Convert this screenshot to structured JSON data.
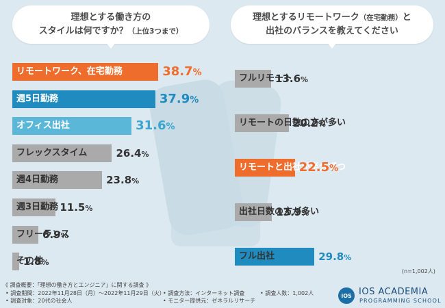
{
  "chart_data": [
    {
      "type": "bar",
      "title_line1": "理想とする働き方の",
      "title_line2": "スタイルは何ですか？",
      "title_note": "（上位3つまで）",
      "categories": [
        "リモートワーク、在宅勤務",
        "週5日勤務",
        "オフィス出社",
        "フレックスタイム",
        "週4日勤務",
        "週3日勤務",
        "フリーランス",
        "その他"
      ],
      "values": [
        38.7,
        37.9,
        31.6,
        26.4,
        23.8,
        11.5,
        6.9,
        1.8
      ],
      "unit": "%",
      "colors": [
        "#ee6d2c",
        "#1f8bbf",
        "#5bb7d8",
        "#aaaaaa",
        "#aaaaaa",
        "#aaaaaa",
        "#aaaaaa",
        "#aaaaaa"
      ],
      "value_colors": [
        "#ee6d2c",
        "#1f8bbf",
        "#3aa6cf",
        "#333333",
        "#333333",
        "#333333",
        "#333333",
        "#333333"
      ],
      "highlight": [
        true,
        true,
        true,
        false,
        false,
        false,
        false,
        false
      ]
    },
    {
      "type": "bar",
      "title_line1": "理想とするリモートワーク",
      "title_note": "（在宅勤務）",
      "title_line1_end": "と",
      "title_line2": "出社のバランスを教えてください",
      "categories": [
        "フルリモート",
        "リモートの日数の方が多い",
        "リモートと出社が半分ずつ",
        "出社日数の方が多い",
        "フル出社"
      ],
      "values": [
        13.6,
        20.2,
        22.5,
        13.9,
        29.8
      ],
      "unit": "%",
      "colors": [
        "#aaaaaa",
        "#aaaaaa",
        "#ee6d2c",
        "#aaaaaa",
        "#1f8bbf"
      ],
      "value_colors": [
        "#333333",
        "#333333",
        "#ee6d2c",
        "#333333",
        "#1f8bbf"
      ],
      "highlight": [
        false,
        false,
        true,
        false,
        false
      ],
      "sample_size": "(n=1,002人)"
    }
  ],
  "footer": {
    "survey_title": "《 調査概要：「理想の働き方とエンジニア」に関する調査 》",
    "period": "• 調査期間：2022年11月28日（月）～2022年11月29日（火）",
    "target": "• 調査対象：20代の社会人",
    "method": "• 調査方法：インターネット調査",
    "provider": "• モニター提供元：ゼネラルリサーチ",
    "count": "• 調査人数：1,002人"
  },
  "logo": {
    "mark": "IOS",
    "line1": "IOS ACADEMIA",
    "line2": "PROGRAMMING SCHOOL"
  }
}
